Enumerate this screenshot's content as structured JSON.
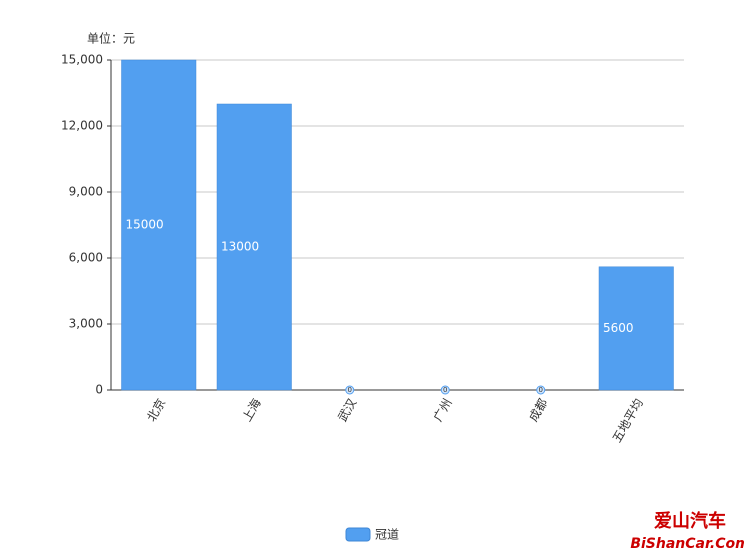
{
  "chart_data": {
    "type": "bar",
    "y_label": "单位：元",
    "categories": [
      "北京",
      "上海",
      "武汉",
      "广州",
      "成都",
      "五地平均"
    ],
    "series": [
      {
        "name": "冠道",
        "color": "#529ff0",
        "values": [
          15000,
          13000,
          0,
          0,
          0,
          5600
        ]
      }
    ],
    "ylim": [
      0,
      15000
    ],
    "yticks": [
      0,
      {
        "value": 3000,
        "label": "3,000"
      },
      {
        "value": 6000,
        "label": "6,000"
      },
      {
        "value": 9000,
        "label": "9,000"
      },
      {
        "value": 12000,
        "label": "12,000"
      },
      {
        "value": 15000,
        "label": "15,000"
      }
    ],
    "grid": true,
    "legend": "bottom",
    "watermark": [
      "爱山汽车",
      "BiShanCar.Com"
    ]
  }
}
